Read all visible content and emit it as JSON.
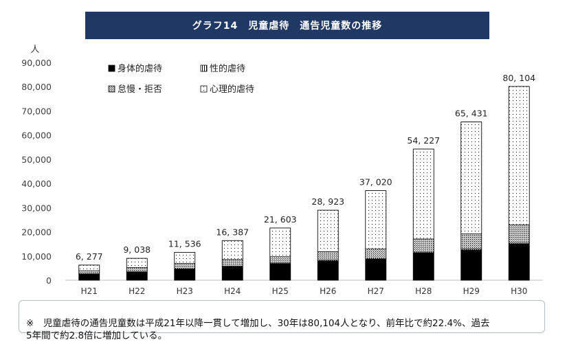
{
  "chart_data": {
    "type": "bar",
    "stacked": true,
    "title": "グラフ14　児童虐待　通告児童数の推移",
    "ylabel": "人",
    "xlabel": "",
    "ylim": [
      0,
      90000
    ],
    "yticks": [
      "0",
      "10,000",
      "20,000",
      "30,000",
      "40,000",
      "50,000",
      "60,000",
      "70,000",
      "80,000",
      "90,000"
    ],
    "categories": [
      "H21",
      "H22",
      "H23",
      "H24",
      "H25",
      "H26",
      "H27",
      "H28",
      "H29",
      "H30"
    ],
    "totals": [
      6277,
      9038,
      11536,
      16387,
      21603,
      28923,
      37020,
      54227,
      65431,
      80104
    ],
    "total_labels": [
      "6, 277",
      "9, 038",
      "11, 536",
      "16, 387",
      "21, 603",
      "28, 923",
      "37, 020",
      "54, 227",
      "65, 431",
      "80, 104"
    ],
    "series": [
      {
        "name": "身体的虐待",
        "pattern": "solid",
        "color": "#000000",
        "values": [
          2500,
          3300,
          4500,
          5600,
          6800,
          8000,
          8700,
          11300,
          12500,
          15000
        ]
      },
      {
        "name": "性的虐待",
        "pattern": "vertical-lines",
        "color": "#000000",
        "values": [
          160,
          200,
          240,
          270,
          280,
          310,
          330,
          360,
          400,
          360
        ]
      },
      {
        "name": "怠慢・拒否",
        "pattern": "crosshatch",
        "color": "#000000",
        "values": [
          1300,
          1800,
          2200,
          2700,
          2700,
          3500,
          4000,
          5400,
          6300,
          7600
        ]
      },
      {
        "name": "心理的虐待",
        "pattern": "dots",
        "color": "#000000",
        "values": [
          2317,
          3738,
          4596,
          7817,
          11823,
          17113,
          23990,
          37167,
          46231,
          57144
        ]
      }
    ],
    "legend_position": "top-left",
    "grid": false
  },
  "note": {
    "symbol": "※",
    "text": "児童虐待の通告児童数は平成21年以降一貫して増加し、30年は80,104人となり、前年比で約22.4%、過去\n5年間で約2.8倍に増加している。"
  },
  "colors": {
    "banner": "#1f3864",
    "axis": "#bfbfbf",
    "text": "#404040"
  }
}
